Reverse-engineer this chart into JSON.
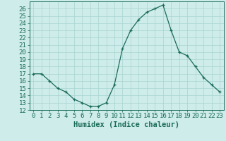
{
  "x": [
    0,
    1,
    2,
    3,
    4,
    5,
    6,
    7,
    8,
    9,
    10,
    11,
    12,
    13,
    14,
    15,
    16,
    17,
    18,
    19,
    20,
    21,
    22,
    23
  ],
  "y": [
    17,
    17,
    16,
    15,
    14.5,
    13.5,
    13,
    12.5,
    12.5,
    13,
    15.5,
    20.5,
    23,
    24.5,
    25.5,
    26,
    26.5,
    23,
    20,
    19.5,
    18,
    16.5,
    15.5,
    14.5
  ],
  "line_color": "#1a6b5a",
  "marker_color": "#1a6b5a",
  "background_color": "#ceecea",
  "grid_color": "#a8d4d0",
  "xlabel": "Humidex (Indice chaleur)",
  "ylim": [
    12,
    27
  ],
  "xlim": [
    -0.5,
    23.5
  ],
  "yticks": [
    12,
    13,
    14,
    15,
    16,
    17,
    18,
    19,
    20,
    21,
    22,
    23,
    24,
    25,
    26
  ],
  "xticks": [
    0,
    1,
    2,
    3,
    4,
    5,
    6,
    7,
    8,
    9,
    10,
    11,
    12,
    13,
    14,
    15,
    16,
    17,
    18,
    19,
    20,
    21,
    22,
    23
  ],
  "text_color": "#1a6b5a",
  "label_fontsize": 7.5,
  "tick_fontsize": 6.5
}
